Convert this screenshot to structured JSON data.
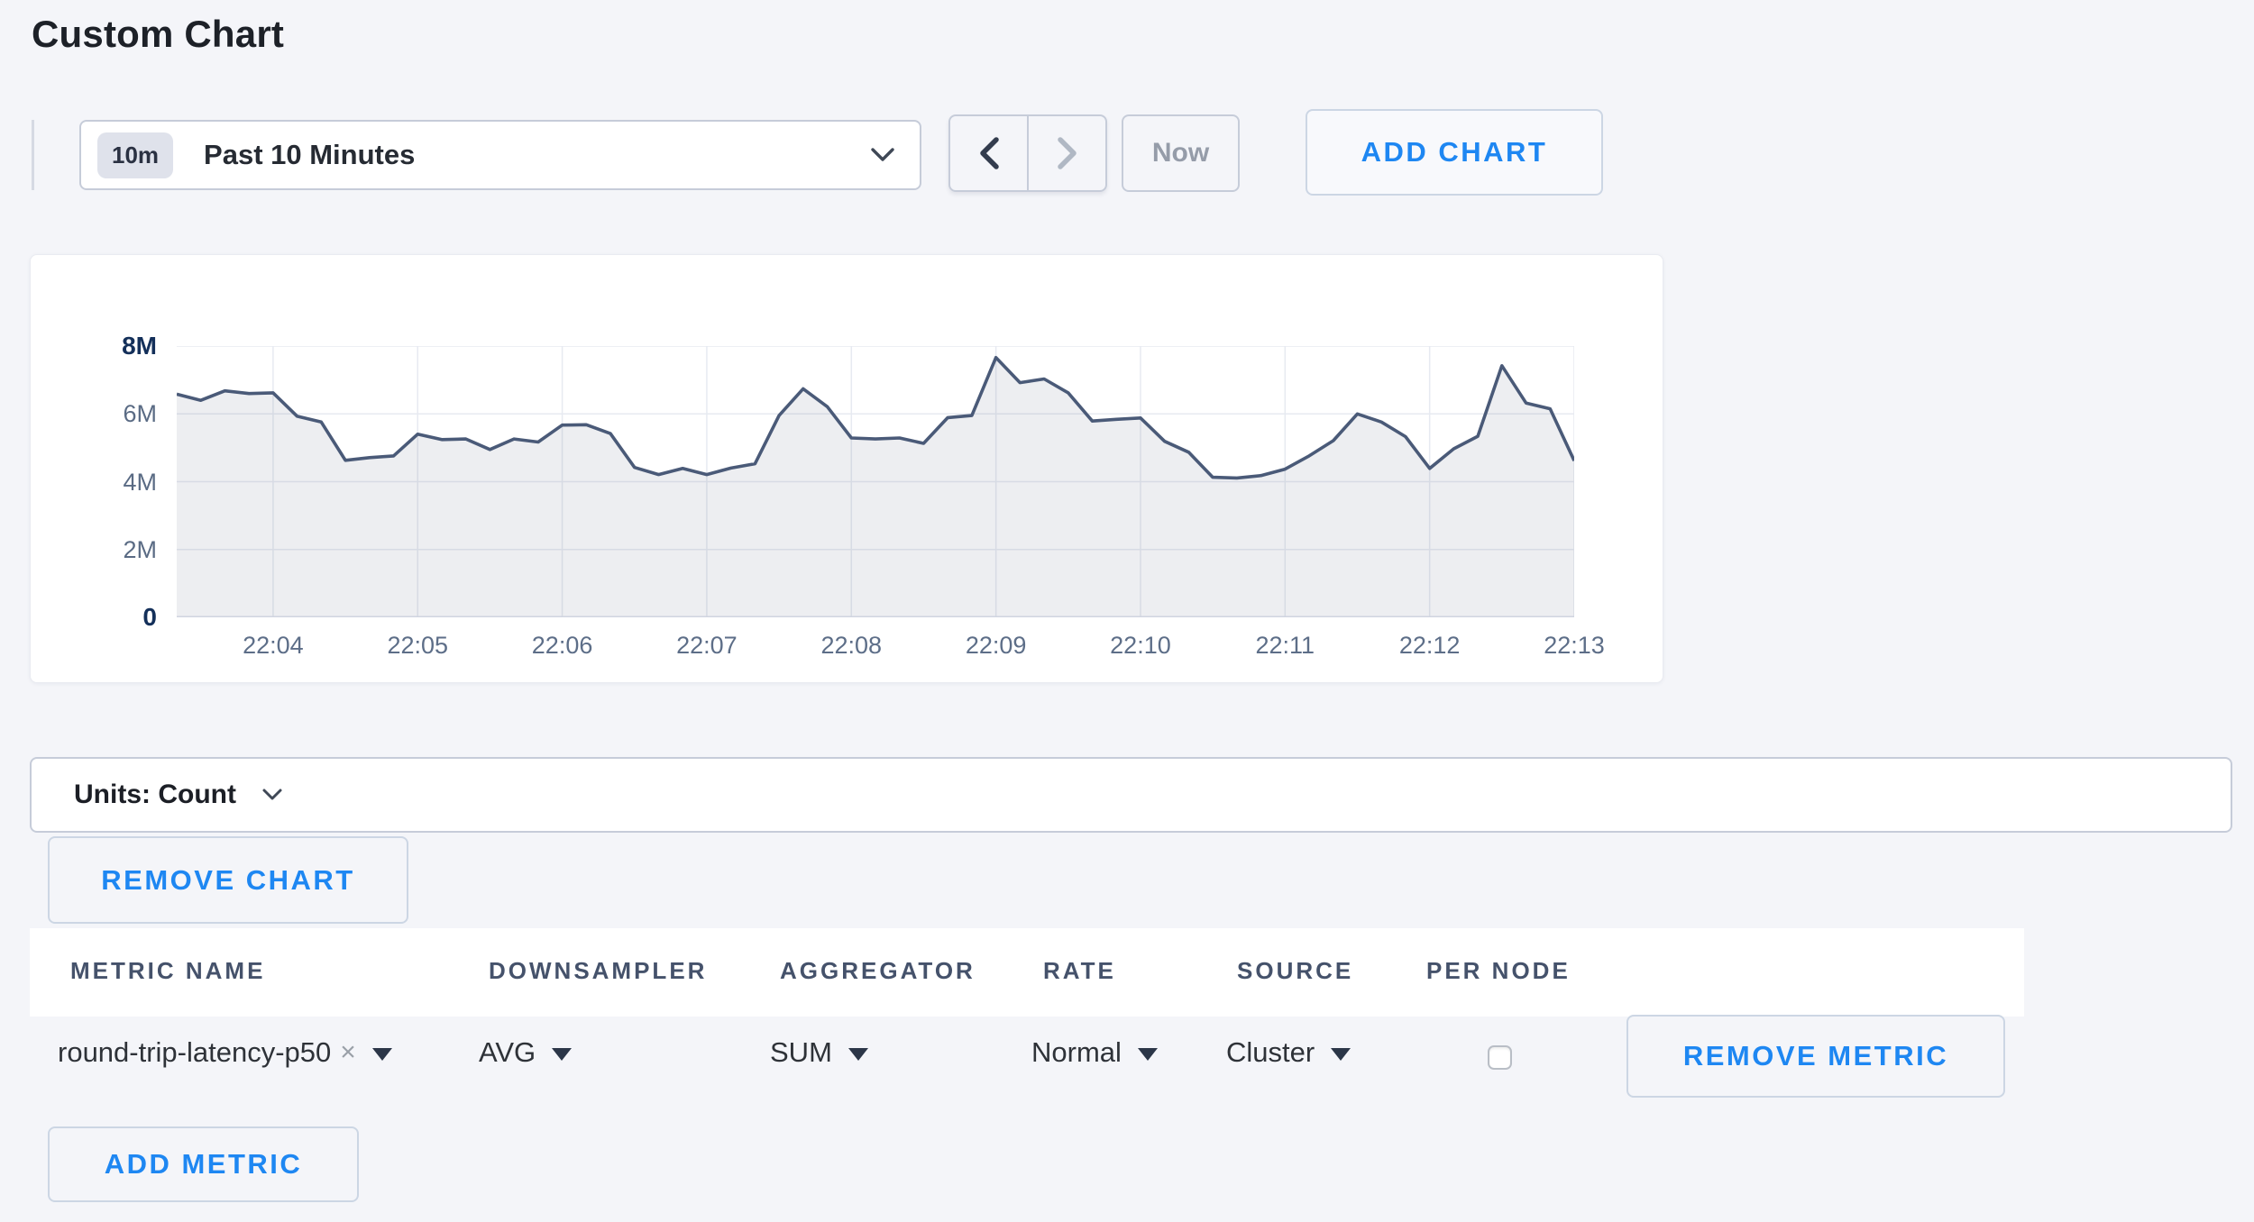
{
  "page": {
    "title": "Custom Chart",
    "accent_blue": "#1e87f2",
    "background": "#f4f5f9"
  },
  "toolbar": {
    "range_badge": "10m",
    "range_label": "Past 10 Minutes",
    "prev_enabled": true,
    "next_enabled": false,
    "now_label": "Now",
    "add_chart_label": "ADD CHART"
  },
  "chart_data": {
    "type": "area",
    "series": [
      {
        "name": "round-trip-latency-p50",
        "units": "Count",
        "values_millions": [
          6.58,
          6.4,
          6.68,
          6.6,
          6.62,
          5.93,
          5.76,
          4.63,
          4.71,
          4.76,
          5.4,
          5.24,
          5.26,
          4.95,
          5.26,
          5.17,
          5.67,
          5.68,
          5.42,
          4.42,
          4.21,
          4.39,
          4.21,
          4.4,
          4.53,
          5.95,
          6.74,
          6.21,
          5.29,
          5.26,
          5.29,
          5.13,
          5.89,
          5.95,
          7.66,
          6.92,
          7.03,
          6.62,
          5.79,
          5.84,
          5.88,
          5.19,
          4.87,
          4.13,
          4.11,
          4.18,
          4.37,
          4.76,
          5.21,
          6.0,
          5.76,
          5.33,
          4.39,
          4.97,
          5.34,
          7.42,
          6.32,
          6.15,
          4.62
        ]
      }
    ],
    "sample_interval_seconds": 10,
    "x_ticks": [
      "22:04",
      "22:05",
      "22:06",
      "22:07",
      "22:08",
      "22:09",
      "22:10",
      "22:11",
      "22:12",
      "22:13"
    ],
    "y_ticks": [
      "8M",
      "6M",
      "4M",
      "2M",
      "0"
    ],
    "ylim": [
      0,
      8000000
    ],
    "grid": true,
    "legend": "none",
    "line_color": "#4a5a78",
    "fill_color": "rgba(74,90,120,0.10)",
    "gridline_color": "#e7eaf1",
    "baseline_color": "#dfe3ec"
  },
  "units_bar": {
    "label": "Units: Count"
  },
  "chart_actions": {
    "remove_chart_label": "REMOVE CHART"
  },
  "metrics_table": {
    "headers": [
      "METRIC NAME",
      "DOWNSAMPLER",
      "AGGREGATOR",
      "RATE",
      "SOURCE",
      "PER NODE"
    ],
    "rows": [
      {
        "metric_name": "round-trip-latency-p50",
        "remove_tag_glyph": "×",
        "downsampler": "AVG",
        "aggregator": "SUM",
        "rate": "Normal",
        "source": "Cluster",
        "per_node_checked": false,
        "remove_label": "REMOVE METRIC"
      }
    ],
    "add_metric_label": "ADD METRIC"
  }
}
